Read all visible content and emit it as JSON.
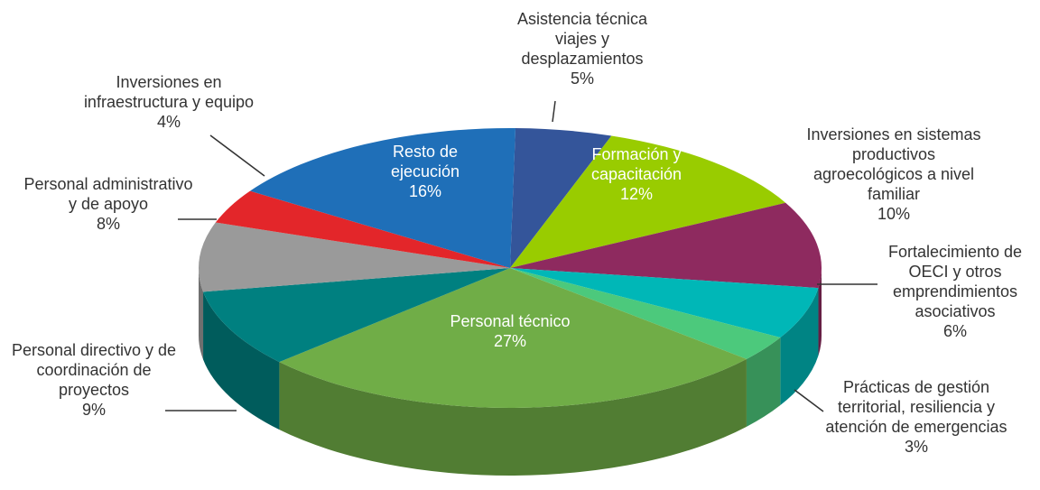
{
  "chart_data": {
    "type": "pie3d",
    "categories": [
      "Asistencia técnica viajes y desplazamientos",
      "Formación y capacitación",
      "Inversiones en sistemas productivos agroecológicos a nivel familiar",
      "Fortalecimiento de OECI y otros emprendimientos asociativos",
      "Prácticas de gestión territorial, resiliencia y atención de emergencias",
      "Personal técnico",
      "Personal directivo y de coordinación de proyectos",
      "Personal administrativo y de apoyo",
      "Inversiones en infraestructura y equipo",
      "Resto de ejecución"
    ],
    "values": [
      5,
      12,
      10,
      6,
      3,
      27,
      9,
      8,
      4,
      16
    ],
    "value_labels": [
      "5%",
      "12%",
      "10%",
      "6%",
      "3%",
      "27%",
      "9%",
      "8%",
      "4%",
      "16%"
    ],
    "colors": [
      "#34559a",
      "#99cc00",
      "#8e2a5f",
      "#00b7b7",
      "#4cc97c",
      "#70ad47",
      "#008080",
      "#9a9a9a",
      "#e3262a",
      "#1f6fb8"
    ]
  }
}
